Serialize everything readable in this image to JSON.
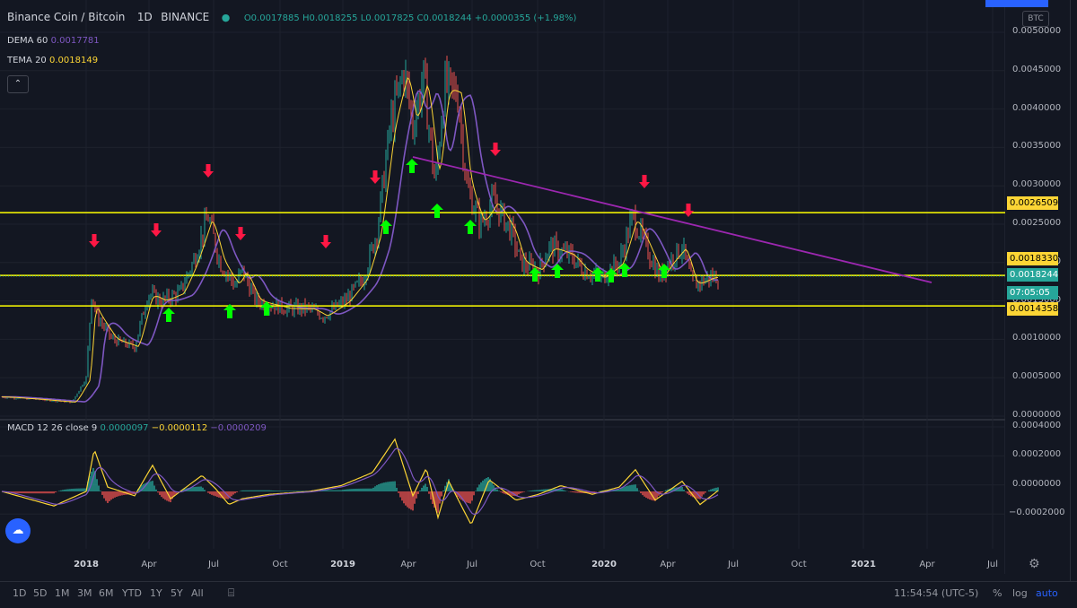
{
  "header": {
    "symbol": "Binance Coin / Bitcoin",
    "interval": "1D",
    "exchange": "BINANCE",
    "ohlc": "O0.0017885 H0.0018255 L0.0017825 C0.0018244 +0.0000355 (+1.98%)"
  },
  "indicators": {
    "dema": {
      "name": "DEMA 60",
      "value": "0.0017781"
    },
    "tema": {
      "name": "TEMA 20",
      "value": "0.0018149"
    },
    "collapse_icon": "chevron-up-icon"
  },
  "macd": {
    "name": "MACD 12 26 close 9",
    "hist": "0.0000097",
    "macd": "−0.0000112",
    "signal": "−0.0000209"
  },
  "currency": "BTC",
  "price_axis": {
    "ticks": [
      "0.0050000",
      "0.0045000",
      "0.0040000",
      "0.0035000",
      "0.0030000",
      "0.0025000",
      "0.0020000",
      "0.0015000",
      "0.0010000",
      "0.0005000",
      "0.0000000"
    ],
    "macd_ticks": [
      "0.0004000",
      "0.0002000",
      "0.0000000",
      "−0.0002000"
    ]
  },
  "price_labels": [
    {
      "text": "0.0026509",
      "bg": "#fcd535",
      "fg": "#000000"
    },
    {
      "text": "0.0018330",
      "bg": "#fcd535",
      "fg": "#000000"
    },
    {
      "text": "0.0018244",
      "bg": "#26a69a",
      "fg": "#ffffff"
    },
    {
      "text": "07:05:05",
      "bg": "#26a69a",
      "fg": "#ffffff"
    },
    {
      "text": "0.0014358",
      "bg": "#fcd535",
      "fg": "#000000"
    }
  ],
  "time_axis": {
    "labels": [
      "2018",
      "Apr",
      "Jul",
      "Oct",
      "2019",
      "Apr",
      "Jul",
      "Oct",
      "2020",
      "Apr",
      "Jul",
      "Oct",
      "2021",
      "Apr",
      "Jul"
    ]
  },
  "ranges": [
    "1D",
    "5D",
    "1M",
    "3M",
    "6M",
    "YTD",
    "1Y",
    "5Y",
    "All"
  ],
  "clock": "11:54:54 (UTC-5)",
  "options": {
    "percent": "%",
    "log": "log",
    "auto": "auto"
  },
  "colors": {
    "background": "#131722",
    "support_line": "#ffff00",
    "trend_line": "#9c27b0",
    "dema": "#7e57c2",
    "tema": "#fcd535",
    "up_arrow": "#00ff00",
    "down_arrow": "#ff1744",
    "candle_up": "#26a69a",
    "candle_down": "#ef5350"
  }
}
